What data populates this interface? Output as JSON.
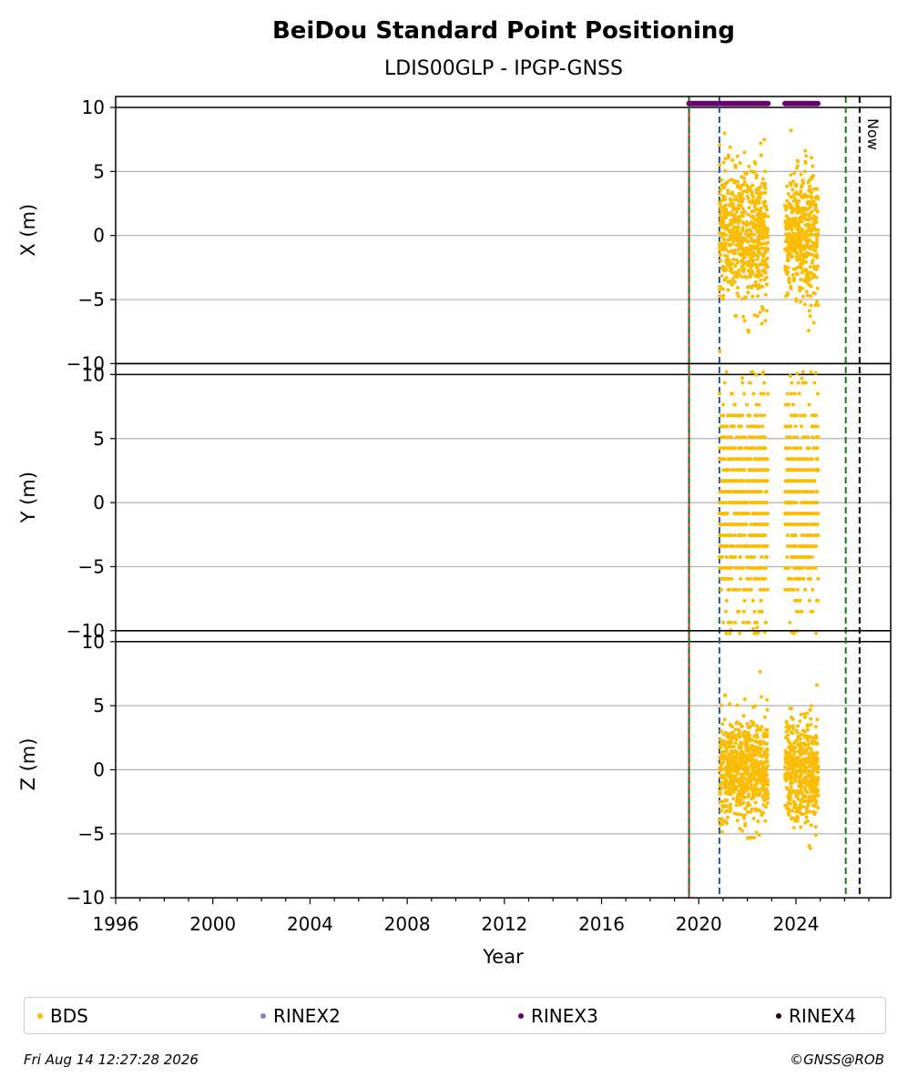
{
  "title": "BeiDou Standard Point Positioning",
  "subtitle": "LDIS00GLP - IPGP-GNSS",
  "colors": {
    "bds": "#fbbc04",
    "rinex2": "#8f7fbf",
    "rinex3": "#6b0070",
    "rinex4": "#1a0012",
    "vline_red": "#d62728",
    "vline_green": "#0f7a0f",
    "vline_blue": "#1f5aa8",
    "vline_now": "#000000"
  },
  "legend": {
    "bds": "BDS",
    "rinex2": "RINEX2",
    "rinex3": "RINEX3",
    "rinex4": "RINEX4"
  },
  "footer": {
    "timestamp": "Fri Aug 14 12:27:28 2026",
    "credit": "©GNSS@ROB"
  },
  "chart_data": {
    "type": "scatter",
    "xlabel": "Year",
    "xlim": [
      1996,
      2027.9
    ],
    "x_ticks": [
      "1996",
      "2000",
      "2004",
      "2008",
      "2012",
      "2016",
      "2020",
      "2024"
    ],
    "now_label": "Now",
    "vertical_lines": [
      {
        "x": 2019.6,
        "style": "solid",
        "color": "red"
      },
      {
        "x": 2019.6,
        "style": "dashed",
        "color": "green"
      },
      {
        "x": 2020.85,
        "style": "dashed",
        "color": "blue"
      },
      {
        "x": 2026.05,
        "style": "dashed",
        "color": "green"
      },
      {
        "x": 2026.62,
        "style": "dashed",
        "color": "black",
        "label": "Now"
      }
    ],
    "panels": [
      {
        "ylabel": "X (m)",
        "ylim": [
          -10,
          10
        ],
        "y_ticks": [
          -10,
          -5,
          0,
          5,
          10
        ],
        "spread": 2.6,
        "max_abs": 9.7,
        "lattice": false
      },
      {
        "ylabel": "Y (m)",
        "ylim": [
          -10,
          10
        ],
        "y_ticks": [
          -10,
          -5,
          0,
          5,
          10
        ],
        "spread": 4.3,
        "max_abs": 10.2,
        "lattice": true
      },
      {
        "ylabel": "Z (m)",
        "ylim": [
          -10,
          10
        ],
        "y_ticks": [
          -10,
          -5,
          0,
          5,
          10
        ],
        "spread": 2.0,
        "max_abs": 8.0,
        "lattice": false
      }
    ],
    "bds_series": {
      "name": "BDS",
      "segments": [
        [
          2020.85,
          2022.85
        ],
        [
          2023.55,
          2024.92
        ]
      ],
      "mean": 0
    },
    "rinex3_series": {
      "name": "RINEX3",
      "segments": [
        [
          2019.6,
          2020.9
        ],
        [
          2021.0,
          2021.45
        ],
        [
          2021.5,
          2022.85
        ],
        [
          2023.55,
          2024.92
        ]
      ],
      "y": 10.3
    }
  }
}
